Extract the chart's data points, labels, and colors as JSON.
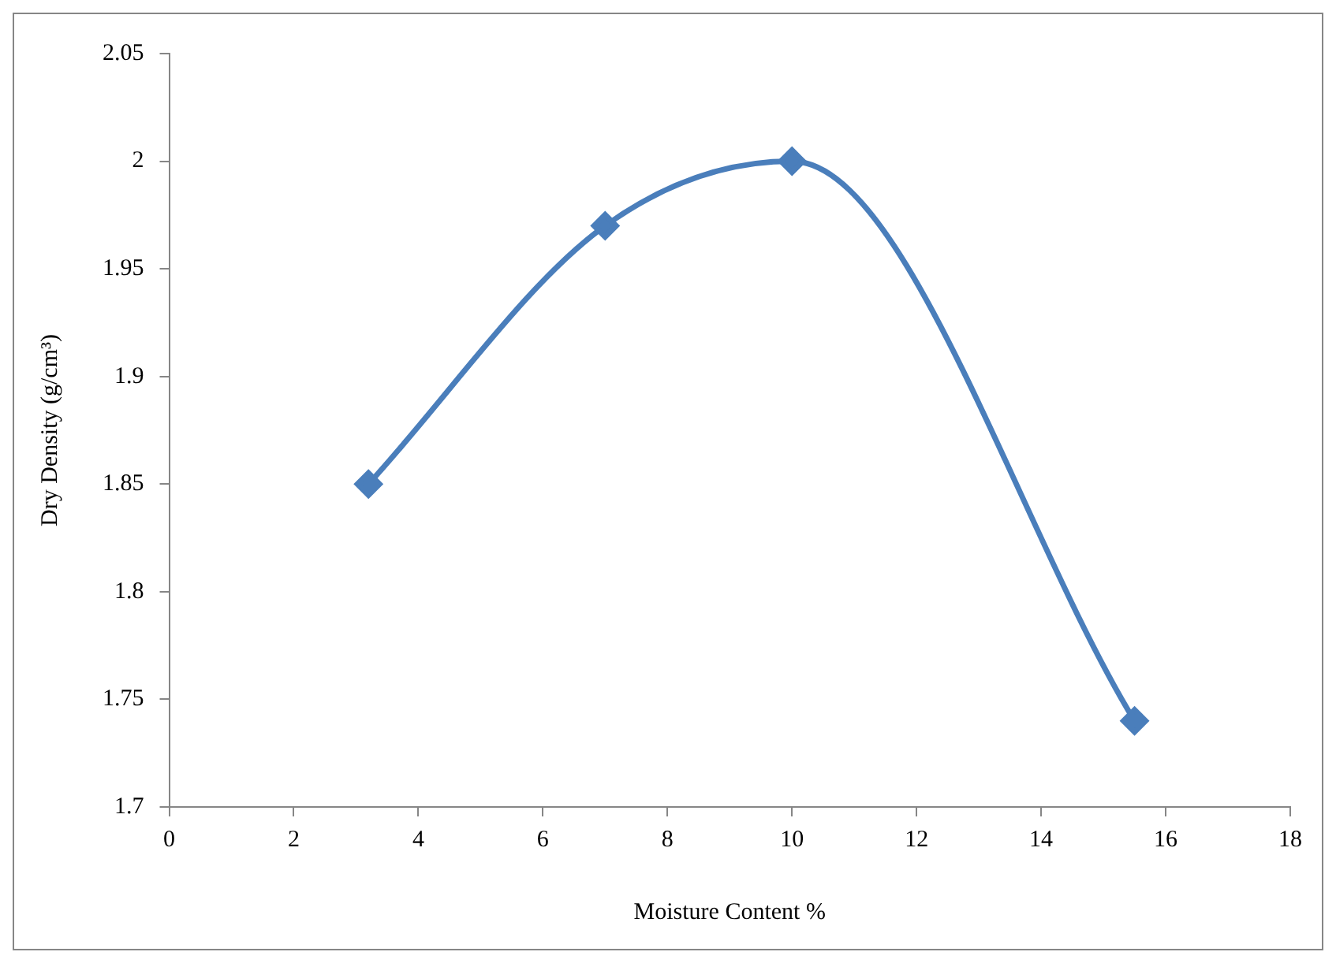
{
  "chart_data": {
    "type": "line",
    "xlabel": "Moisture Content %",
    "ylabel": "Dry Density (g/cm³)",
    "x": [
      3.2,
      7,
      10,
      15.5
    ],
    "series": [
      {
        "color": "#4a7ebb",
        "values": [
          1.85,
          1.97,
          2.0,
          1.74
        ]
      }
    ],
    "xlim": [
      0,
      18
    ],
    "xticks": [
      0,
      2,
      4,
      6,
      8,
      10,
      12,
      14,
      16,
      18
    ],
    "ylim": [
      1.7,
      2.05
    ],
    "yticks": [
      1.7,
      1.75,
      1.8,
      1.85,
      1.9,
      1.95,
      2,
      2.05
    ],
    "marker": "diamond",
    "line_style": "solid"
  }
}
